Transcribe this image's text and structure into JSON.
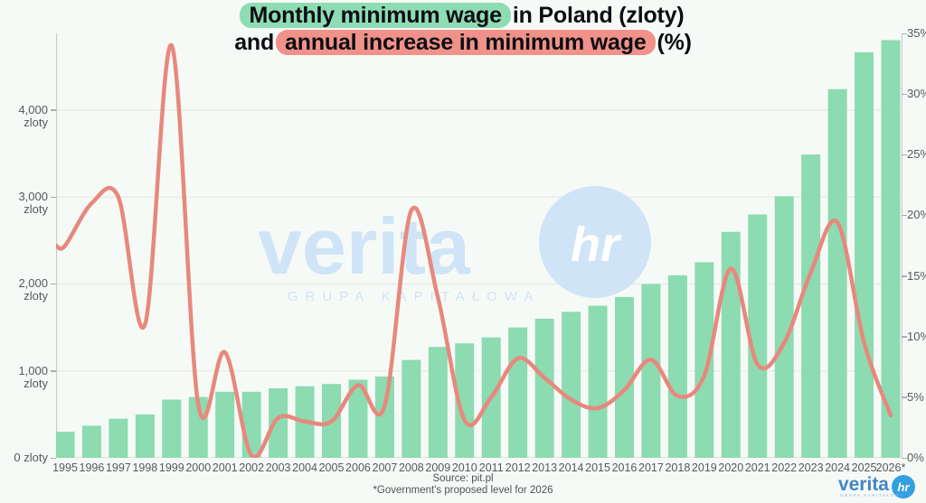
{
  "title": {
    "line1_highlight": "Monthly minimum wage",
    "line1_rest": "in Poland (zloty)",
    "line2_prefix": "and",
    "line2_highlight": "annual increase in minimum wage",
    "line2_rest": "(%)"
  },
  "source_note": {
    "source": "Source: pit.pl",
    "note": "*Government's proposed level for 2026"
  },
  "watermark": {
    "brand": "verita",
    "badge": "hr",
    "subtitle": "GRUPA KAPITAŁOWA"
  },
  "brand_logo": {
    "brand": "verita",
    "badge": "hr",
    "subtitle": "GRUPA KAPITAŁOWA"
  },
  "colors": {
    "background": "#f6faf7",
    "bar_green": "#8cdbb1",
    "line_salmon": "#e8887d",
    "title_highlight_green": "#8edcb3",
    "title_highlight_red": "#f0928a",
    "axis_text": "#54595d",
    "gridline": "#e5eae6",
    "axis_line": "#c8cecb",
    "watermark_blue": "#cfe4f6",
    "logo_text_blue": "#4285c7",
    "logo_circle_blue": "#33a0e2"
  },
  "chart_data": {
    "type": "combo-bar-line",
    "title": "Monthly minimum wage in Poland (zloty) and annual increase in minimum wage (%)",
    "categories": [
      "1995",
      "1996",
      "1997",
      "1998",
      "1999",
      "2000",
      "2001",
      "2002",
      "2003",
      "2004",
      "2005",
      "2006",
      "2007",
      "2008",
      "2009",
      "2010",
      "2011",
      "2012",
      "2013",
      "2014",
      "2015",
      "2016",
      "2017",
      "2018",
      "2019",
      "2020",
      "2021",
      "2022",
      "2023",
      "2024",
      "2025",
      "2026*"
    ],
    "series": [
      {
        "name": "Monthly minimum wage (zloty)",
        "type": "bar",
        "axis": "left",
        "color": "#8cdbb1",
        "values": [
          300,
          370,
          450,
          500,
          670,
          700,
          760,
          760,
          800,
          824,
          849,
          899,
          936,
          1126,
          1276,
          1317,
          1386,
          1500,
          1600,
          1680,
          1750,
          1850,
          2000,
          2100,
          2250,
          2600,
          2800,
          3010,
          3490,
          4242,
          4666,
          4806
        ]
      },
      {
        "name": "Annual increase in minimum wage (%)",
        "type": "line",
        "axis": "right",
        "color": "#e8887d",
        "values": [
          17.5,
          21.0,
          21.5,
          11.0,
          34.0,
          4.4,
          8.7,
          0.2,
          3.3,
          3.0,
          3.0,
          6.0,
          4.3,
          20.4,
          13.2,
          3.1,
          5.0,
          8.2,
          6.6,
          4.8,
          4.1,
          5.6,
          8.1,
          5.1,
          6.8,
          15.6,
          7.7,
          9.5,
          15.3,
          19.4,
          9.5,
          3.5
        ]
      }
    ],
    "left_axis": {
      "unit": "zloty",
      "range": [
        0,
        4883
      ],
      "tick_values": [
        0,
        1000,
        2000,
        3000,
        4000
      ],
      "tick_labels": [
        "0 zloty",
        "1,000 zloty",
        "2,000 zloty",
        "3,000 zloty",
        "4,000 zloty"
      ]
    },
    "right_axis": {
      "unit": "%",
      "range": [
        0,
        35
      ],
      "tick_values": [
        0,
        5,
        10,
        15,
        20,
        25,
        30,
        35
      ],
      "tick_labels": [
        "0%",
        "5%",
        "10%",
        "15%",
        "20%",
        "25%",
        "30%",
        "35%"
      ]
    },
    "grid": "horizontal gridlines at each 1,000 zloty",
    "legend": "encoded via highlighted title (green = bars, red = line)"
  }
}
